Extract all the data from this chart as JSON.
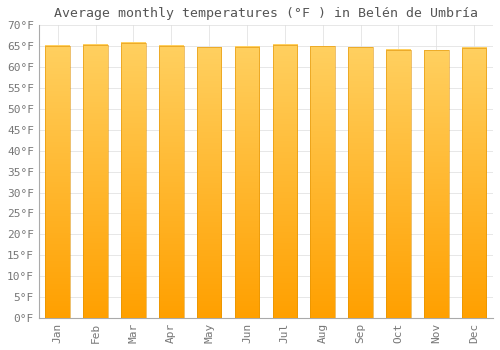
{
  "title": "Average monthly temperatures (°F ) in Belén de Umbría",
  "months": [
    "Jan",
    "Feb",
    "Mar",
    "Apr",
    "May",
    "Jun",
    "Jul",
    "Aug",
    "Sep",
    "Oct",
    "Nov",
    "Dec"
  ],
  "values": [
    65.1,
    65.3,
    65.8,
    65.1,
    64.8,
    64.9,
    65.3,
    65.0,
    64.8,
    64.2,
    64.0,
    64.6
  ],
  "bar_color_light": "#FFD060",
  "bar_color_dark": "#FFA000",
  "background_color": "#ffffff",
  "grid_color": "#dddddd",
  "ylim": [
    0,
    70
  ],
  "yticks": [
    0,
    5,
    10,
    15,
    20,
    25,
    30,
    35,
    40,
    45,
    50,
    55,
    60,
    65,
    70
  ],
  "ytick_labels": [
    "0°F",
    "5°F",
    "10°F",
    "15°F",
    "20°F",
    "25°F",
    "30°F",
    "35°F",
    "40°F",
    "45°F",
    "50°F",
    "55°F",
    "60°F",
    "65°F",
    "70°F"
  ],
  "title_fontsize": 9.5,
  "tick_fontsize": 8,
  "font_family": "monospace"
}
